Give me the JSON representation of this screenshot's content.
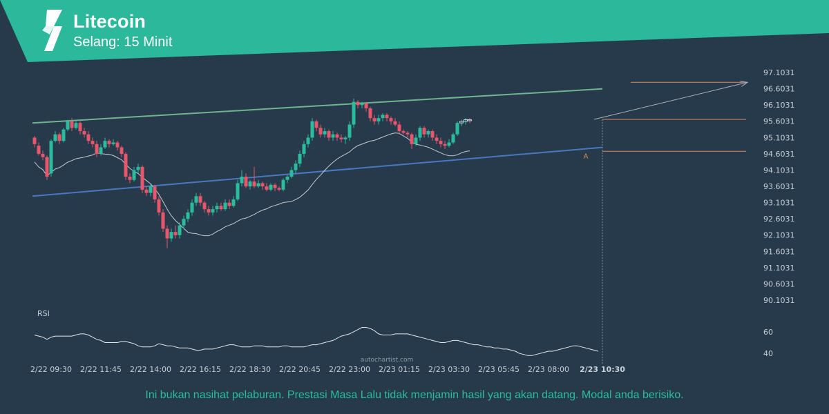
{
  "header": {
    "title": "Litecoin",
    "subtitle": "Selang: 15 Minit",
    "band_color": "#2bb89b"
  },
  "watermark": "autochartist.com",
  "disclaimer": "Ini bukan nasihat pelaburan. Prestasi Masa Lalu tidak menjamin hasil yang akan datang. Modal anda berisiko.",
  "colors": {
    "background": "#263a4c",
    "up_candle": "#2bbc9e",
    "down_candle": "#e8566b",
    "moving_average": "#c8ccd0",
    "resistance_line": "#6fb58d",
    "support_line": "#4a78c0",
    "level_line": "#e08a5a",
    "projection_arrow": "#a9b2ba",
    "rsi_line": "#e6e9ec"
  },
  "chart_data": {
    "type": "candlestick",
    "title": "",
    "interval": "15 Minit",
    "y_ticks": [
      "97.1031",
      "96.6031",
      "96.1031",
      "95.6031",
      "95.1031",
      "94.6031",
      "94.1031",
      "93.6031",
      "93.1031",
      "92.6031",
      "92.1031",
      "91.6031",
      "91.1031",
      "90.6031",
      "90.1031"
    ],
    "y_range": [
      90.1031,
      97.1031
    ],
    "x_ticks": [
      "2/22 09:30",
      "2/22 11:45",
      "2/22 14:00",
      "2/22 16:15",
      "2/22 18:30",
      "2/22 20:45",
      "2/22 23:00",
      "2/23 01:15",
      "2/23 03:30",
      "2/23 05:45",
      "2/23 08:00",
      "2/23 10:30"
    ],
    "x_tick_index": [
      4,
      16,
      28,
      40,
      52,
      64,
      76,
      88,
      100,
      112,
      124,
      137
    ],
    "last_tick_label": "2/23 10:30",
    "candles": [
      [
        95.1,
        94.9,
        95.15,
        94.8
      ],
      [
        94.85,
        94.6,
        94.95,
        94.55
      ],
      [
        94.6,
        94.5,
        94.7,
        94.4
      ],
      [
        94.5,
        93.9,
        94.55,
        93.8
      ],
      [
        94.0,
        95.0,
        95.05,
        93.9
      ],
      [
        95.0,
        95.2,
        95.3,
        94.95
      ],
      [
        95.2,
        95.0,
        95.25,
        94.9
      ],
      [
        95.0,
        95.35,
        95.4,
        94.95
      ],
      [
        95.35,
        95.6,
        95.65,
        95.3
      ],
      [
        95.6,
        95.4,
        95.7,
        95.3
      ],
      [
        95.4,
        95.55,
        95.6,
        95.35
      ],
      [
        95.55,
        95.3,
        95.6,
        95.2
      ],
      [
        95.3,
        95.2,
        95.4,
        95.1
      ],
      [
        95.2,
        95.0,
        95.3,
        94.9
      ],
      [
        95.0,
        94.9,
        95.1,
        94.8
      ],
      [
        94.9,
        94.6,
        95.0,
        94.5
      ],
      [
        94.6,
        94.8,
        94.9,
        94.55
      ],
      [
        94.8,
        95.0,
        95.1,
        94.75
      ],
      [
        95.0,
        94.9,
        95.05,
        94.8
      ],
      [
        94.9,
        94.95,
        95.05,
        94.85
      ],
      [
        94.95,
        94.8,
        95.0,
        94.7
      ],
      [
        94.8,
        94.6,
        94.85,
        94.5
      ],
      [
        94.6,
        93.9,
        94.65,
        93.8
      ],
      [
        93.9,
        93.8,
        94.0,
        93.7
      ],
      [
        93.8,
        94.1,
        94.2,
        93.75
      ],
      [
        94.1,
        94.2,
        94.3,
        94.0
      ],
      [
        94.2,
        93.5,
        94.25,
        93.4
      ],
      [
        93.5,
        93.4,
        93.6,
        93.3
      ],
      [
        93.4,
        93.6,
        93.7,
        93.3
      ],
      [
        93.6,
        93.2,
        93.65,
        93.1
      ],
      [
        93.2,
        92.8,
        93.3,
        92.7
      ],
      [
        92.8,
        92.3,
        92.9,
        92.2
      ],
      [
        92.3,
        92.0,
        92.4,
        91.7
      ],
      [
        92.0,
        92.2,
        92.3,
        91.9
      ],
      [
        92.2,
        92.1,
        92.4,
        92.0
      ],
      [
        92.1,
        92.4,
        92.5,
        92.0
      ],
      [
        92.4,
        92.6,
        92.7,
        92.3
      ],
      [
        92.6,
        92.8,
        92.9,
        92.5
      ],
      [
        92.8,
        93.1,
        93.2,
        92.7
      ],
      [
        93.1,
        93.3,
        93.4,
        93.0
      ],
      [
        93.3,
        93.1,
        93.4,
        93.0
      ],
      [
        93.1,
        92.9,
        93.15,
        92.8
      ],
      [
        92.9,
        92.8,
        93.0,
        92.7
      ],
      [
        92.8,
        92.9,
        93.0,
        92.7
      ],
      [
        92.9,
        93.0,
        93.1,
        92.8
      ],
      [
        93.0,
        92.9,
        93.1,
        92.85
      ],
      [
        92.9,
        93.1,
        93.2,
        92.85
      ],
      [
        93.1,
        93.0,
        93.2,
        92.9
      ],
      [
        93.0,
        93.2,
        93.3,
        92.95
      ],
      [
        93.2,
        93.7,
        93.8,
        93.15
      ],
      [
        93.7,
        93.9,
        94.1,
        93.6
      ],
      [
        93.9,
        93.6,
        94.0,
        93.55
      ],
      [
        93.6,
        93.75,
        93.8,
        93.5
      ],
      [
        93.75,
        93.6,
        94.2,
        93.55
      ],
      [
        93.6,
        93.7,
        93.8,
        93.55
      ],
      [
        93.7,
        93.6,
        93.75,
        93.5
      ],
      [
        93.6,
        93.5,
        93.7,
        93.45
      ],
      [
        93.5,
        93.65,
        93.7,
        93.45
      ],
      [
        93.65,
        93.55,
        93.7,
        93.45
      ],
      [
        93.55,
        93.5,
        93.6,
        93.45
      ],
      [
        93.5,
        93.8,
        93.85,
        93.45
      ],
      [
        93.8,
        93.9,
        93.95,
        93.7
      ],
      [
        93.9,
        94.1,
        94.2,
        93.85
      ],
      [
        94.1,
        94.3,
        94.4,
        94.0
      ],
      [
        94.3,
        94.6,
        94.7,
        94.2
      ],
      [
        94.6,
        94.9,
        95.0,
        94.5
      ],
      [
        94.9,
        95.1,
        95.2,
        94.8
      ],
      [
        95.1,
        95.6,
        95.7,
        95.0
      ],
      [
        95.6,
        95.4,
        95.65,
        95.3
      ],
      [
        95.4,
        95.2,
        95.5,
        95.1
      ],
      [
        95.2,
        95.3,
        95.4,
        95.1
      ],
      [
        95.3,
        95.1,
        95.35,
        95.0
      ],
      [
        95.1,
        95.2,
        95.3,
        95.0
      ],
      [
        95.2,
        95.1,
        95.25,
        95.0
      ],
      [
        95.1,
        95.05,
        95.2,
        94.95
      ],
      [
        95.05,
        95.1,
        95.15,
        94.9
      ],
      [
        95.1,
        95.5,
        95.6,
        95.0
      ],
      [
        95.5,
        96.2,
        96.3,
        95.4
      ],
      [
        96.2,
        96.1,
        96.25,
        96.0
      ],
      [
        96.1,
        96.15,
        96.2,
        96.0
      ],
      [
        96.15,
        96.0,
        96.2,
        95.9
      ],
      [
        96.0,
        95.7,
        96.05,
        95.6
      ],
      [
        95.7,
        95.6,
        95.8,
        95.5
      ],
      [
        95.6,
        95.7,
        95.8,
        95.5
      ],
      [
        95.7,
        95.8,
        95.85,
        95.6
      ],
      [
        95.8,
        95.7,
        95.85,
        95.6
      ],
      [
        95.7,
        95.6,
        95.75,
        95.5
      ],
      [
        95.6,
        95.5,
        95.7,
        95.45
      ],
      [
        95.5,
        95.3,
        95.6,
        95.2
      ],
      [
        95.3,
        95.25,
        95.35,
        95.2
      ],
      [
        95.25,
        95.2,
        95.3,
        95.1
      ],
      [
        95.2,
        94.9,
        95.25,
        94.75
      ],
      [
        94.9,
        95.1,
        95.2,
        94.85
      ],
      [
        95.1,
        95.4,
        95.45,
        95.0
      ],
      [
        95.4,
        95.2,
        95.45,
        95.1
      ],
      [
        95.2,
        95.3,
        95.35,
        95.1
      ],
      [
        95.3,
        95.1,
        95.35,
        95.0
      ],
      [
        95.1,
        95.0,
        95.2,
        94.9
      ],
      [
        95.0,
        94.9,
        95.1,
        94.8
      ],
      [
        94.9,
        94.85,
        95.0,
        94.75
      ],
      [
        94.85,
        94.95,
        95.05,
        94.8
      ],
      [
        94.95,
        95.2,
        95.25,
        94.9
      ],
      [
        95.2,
        95.55,
        95.6,
        95.15
      ],
      [
        95.55,
        95.6,
        95.65,
        95.45
      ],
      [
        95.6,
        95.65,
        95.7,
        95.5
      ],
      [
        95.65,
        95.62,
        95.7,
        95.55
      ]
    ],
    "levels": {
      "upper": 96.8,
      "middle": 95.66,
      "lower": 94.68
    },
    "resistance": {
      "start": [
        0,
        95.55
      ],
      "end": [
        137,
        96.6
      ]
    },
    "support": {
      "start": [
        0,
        93.3
      ],
      "end": [
        137,
        94.8
      ]
    },
    "projection_target": 96.8,
    "pattern_label": "A",
    "rsi": {
      "label": "RSI",
      "ticks": [
        60,
        40
      ],
      "range": [
        35,
        72
      ],
      "values": [
        57,
        56,
        55,
        53,
        55,
        56,
        56,
        56,
        56,
        56,
        57,
        58,
        58,
        57,
        55,
        53,
        52,
        50,
        50,
        50,
        50,
        51,
        51,
        50,
        49,
        47,
        46,
        46,
        46,
        47,
        49,
        48,
        47,
        47,
        46,
        45,
        45,
        45,
        44,
        43,
        43,
        44,
        44,
        44,
        45,
        46,
        47,
        48,
        48,
        47,
        46,
        46,
        46,
        47,
        47,
        47,
        46,
        46,
        46,
        46,
        47,
        47,
        46,
        46,
        46,
        46,
        47,
        48,
        48,
        49,
        50,
        51,
        52,
        54,
        56,
        57,
        58,
        60,
        62,
        64,
        64,
        63,
        61,
        58,
        57,
        57,
        57,
        58,
        58,
        58,
        58,
        57,
        56,
        55,
        54,
        53,
        52,
        51,
        50,
        50,
        51,
        52,
        52,
        51,
        50,
        49,
        48,
        48,
        47,
        46,
        46,
        45,
        45,
        44,
        44,
        43,
        42,
        40,
        39,
        38,
        38,
        39,
        40,
        41,
        42,
        42,
        43,
        44,
        45,
        46,
        47,
        47,
        46,
        45,
        44,
        43,
        42
      ]
    }
  }
}
